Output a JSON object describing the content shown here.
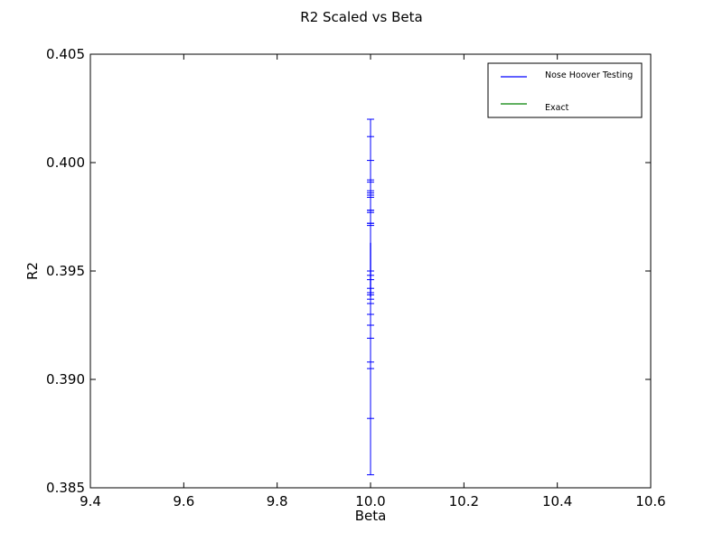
{
  "chart_data": {
    "type": "scatter",
    "title": "R2 Scaled vs Beta",
    "xlabel": "Beta",
    "ylabel": "R2",
    "xlim": [
      9.4,
      10.6
    ],
    "ylim": [
      0.385,
      0.405
    ],
    "xticks": [
      "9.4",
      "9.6",
      "9.8",
      "10.0",
      "10.2",
      "10.4",
      "10.6"
    ],
    "yticks": [
      "0.385",
      "0.390",
      "0.395",
      "0.400",
      "0.405"
    ],
    "grid": false,
    "legend_position": "top-right",
    "series": [
      {
        "name": "Nose Hoover Testing",
        "color": "#0000ff",
        "style": "errorbar-line",
        "points": [
          {
            "x": 10.0,
            "y": 0.3938,
            "err": 0.0082
          },
          {
            "x": 10.0,
            "y": 0.3947,
            "err": 0.0065
          },
          {
            "x": 10.0,
            "y": 0.3953,
            "err": 0.0048
          },
          {
            "x": 10.0,
            "y": 0.3955,
            "err": 0.0036
          },
          {
            "x": 10.0,
            "y": 0.3958,
            "err": 0.0028
          },
          {
            "x": 10.0,
            "y": 0.3962,
            "err": 0.0022
          },
          {
            "x": 10.0,
            "y": 0.396,
            "err": 0.0018
          },
          {
            "x": 10.0,
            "y": 0.3963,
            "err": 0.0015
          },
          {
            "x": 10.0,
            "y": 0.3959,
            "err": 0.0013
          },
          {
            "x": 10.0,
            "y": 0.3961,
            "err": 0.0011
          },
          {
            "x": 10.0,
            "y": 0.3955,
            "err": 0.0016
          },
          {
            "x": 10.0,
            "y": 0.3957,
            "err": 0.002
          },
          {
            "x": 10.0,
            "y": 0.396,
            "err": 0.0025
          },
          {
            "x": 10.0,
            "y": 0.395,
            "err": 0.0042
          },
          {
            "x": 10.0,
            "y": 0.3956,
            "err": 0.0031
          }
        ]
      },
      {
        "name": "Exact",
        "color": "#008000",
        "style": "line",
        "points": []
      }
    ]
  }
}
